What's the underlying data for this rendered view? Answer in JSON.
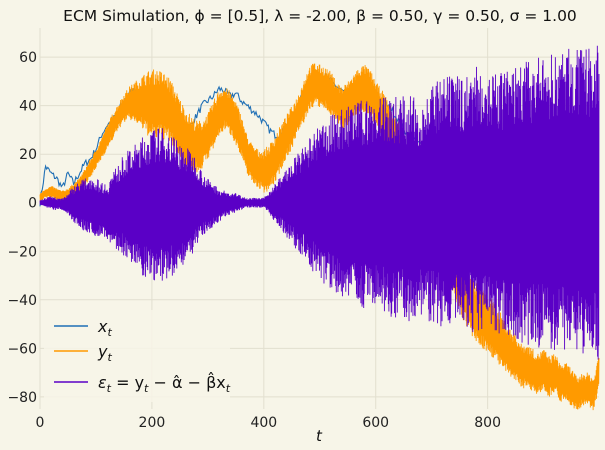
{
  "chart_data": {
    "type": "line",
    "title": "ECM Simulation, ϕ = [0.5], λ = -2.00, β = 0.50, γ = 0.50, σ = 1.00",
    "xlabel": "t",
    "ylabel": "",
    "xlim": [
      0,
      999
    ],
    "ylim": [
      -85,
      72
    ],
    "xticks": [
      0,
      200,
      400,
      600,
      800
    ],
    "xtick_labels": [
      "0",
      "200",
      "400",
      "600",
      "800"
    ],
    "yticks": [
      -80,
      -60,
      -40,
      -20,
      0,
      20,
      40,
      60
    ],
    "ytick_labels": [
      "−80",
      "−60",
      "−40",
      "−20",
      "0",
      "20",
      "40",
      "60"
    ],
    "grid": true,
    "legend_position": "bottom-left",
    "series": [
      {
        "name": "x_t",
        "label": "x",
        "label_sub": "t",
        "color": "#1f6fb5",
        "style": "trend",
        "x": [
          0,
          10,
          20,
          30,
          40,
          50,
          60,
          70,
          80,
          90,
          100,
          110,
          120,
          130,
          140,
          150,
          160,
          170,
          180,
          190,
          200,
          210,
          220,
          230,
          240,
          250,
          260,
          270,
          280,
          290,
          300,
          310,
          320,
          330,
          340,
          350,
          360,
          370,
          380,
          390,
          400,
          410,
          420,
          430,
          440,
          450,
          460,
          470,
          480,
          490,
          500,
          510,
          520,
          530,
          540,
          550,
          560,
          570,
          580,
          590,
          600,
          610,
          620,
          630,
          640,
          650,
          660,
          670,
          680,
          690,
          700,
          710,
          720,
          730,
          740,
          750,
          760,
          770,
          780,
          790,
          800,
          810,
          820,
          830,
          840,
          850,
          860,
          870,
          880,
          890,
          900,
          910,
          920,
          930,
          940,
          950,
          960,
          970,
          980,
          990,
          999
        ],
        "values": [
          0,
          15,
          12,
          10,
          6,
          12,
          8,
          12,
          16,
          18,
          22,
          28,
          32,
          34,
          38,
          42,
          45,
          47,
          44,
          42,
          40,
          42,
          38,
          36,
          33,
          30,
          30,
          32,
          36,
          40,
          42,
          44,
          47,
          46,
          44,
          45,
          42,
          40,
          38,
          36,
          33,
          30,
          28,
          28,
          30,
          34,
          40,
          44,
          48,
          50,
          52,
          52,
          50,
          48,
          46,
          45,
          44,
          45,
          46,
          45,
          44,
          43,
          40,
          38,
          34,
          30,
          28,
          26,
          24,
          22,
          20,
          18,
          16,
          14,
          13,
          12,
          11,
          10,
          9,
          8,
          7,
          6,
          5,
          5,
          4,
          4,
          4,
          4,
          4,
          4,
          5,
          5,
          5,
          6,
          6,
          6,
          6,
          6,
          6,
          6,
          6
        ]
      },
      {
        "name": "y_t",
        "label": "y",
        "label_sub": "t",
        "color": "#ff9a00",
        "style": "band",
        "x": [
          0,
          10,
          20,
          30,
          40,
          50,
          60,
          70,
          80,
          90,
          100,
          110,
          120,
          130,
          140,
          150,
          160,
          170,
          180,
          190,
          200,
          210,
          220,
          230,
          240,
          250,
          260,
          270,
          280,
          290,
          300,
          310,
          320,
          330,
          340,
          350,
          360,
          370,
          380,
          390,
          400,
          410,
          420,
          430,
          440,
          450,
          460,
          470,
          480,
          490,
          500,
          510,
          520,
          530,
          540,
          550,
          560,
          570,
          580,
          590,
          600,
          610,
          620,
          630,
          640,
          650,
          660,
          670,
          680,
          690,
          700,
          710,
          720,
          730,
          740,
          750,
          760,
          770,
          780,
          790,
          800,
          810,
          820,
          830,
          840,
          850,
          860,
          870,
          880,
          890,
          900,
          910,
          920,
          930,
          940,
          950,
          960,
          970,
          980,
          990,
          999
        ],
        "upper": [
          4,
          6,
          7,
          6,
          5,
          6,
          8,
          10,
          14,
          18,
          22,
          27,
          32,
          37,
          41,
          45,
          48,
          50,
          52,
          54,
          55,
          55,
          54,
          52,
          48,
          43,
          39,
          36,
          34,
          34,
          37,
          42,
          47,
          48,
          46,
          42,
          36,
          28,
          24,
          22,
          22,
          24,
          28,
          32,
          36,
          40,
          44,
          50,
          56,
          58,
          57,
          56,
          54,
          50,
          48,
          50,
          53,
          56,
          57,
          55,
          50,
          47,
          43,
          38,
          34,
          27,
          20,
          12,
          8,
          4,
          0,
          -4,
          -8,
          -12,
          -16,
          -20,
          -26,
          -30,
          -33,
          -34,
          -38,
          -40,
          -44,
          -48,
          -52,
          -54,
          -58,
          -58,
          -60,
          -62,
          -60,
          -63,
          -62,
          -66,
          -66,
          -68,
          -72,
          -70,
          -70,
          -72,
          -62
        ],
        "lower": [
          0,
          2,
          2,
          1,
          0,
          1,
          3,
          4,
          7,
          10,
          14,
          18,
          22,
          26,
          30,
          33,
          34,
          33,
          31,
          28,
          26,
          26,
          26,
          25,
          22,
          18,
          14,
          12,
          12,
          14,
          18,
          22,
          27,
          30,
          28,
          24,
          18,
          12,
          8,
          6,
          4,
          5,
          8,
          13,
          18,
          22,
          28,
          32,
          37,
          40,
          39,
          38,
          36,
          33,
          30,
          32,
          35,
          37,
          37,
          34,
          32,
          28,
          22,
          16,
          10,
          2,
          -5,
          -12,
          -16,
          -20,
          -25,
          -28,
          -32,
          -36,
          -40,
          -46,
          -50,
          -55,
          -58,
          -60,
          -62,
          -64,
          -67,
          -70,
          -72,
          -74,
          -76,
          -77,
          -78,
          -79,
          -78,
          -80,
          -78,
          -82,
          -82,
          -84,
          -86,
          -84,
          -84,
          -86,
          -76
        ]
      },
      {
        "name": "epsilon_t",
        "label": "ε",
        "label_sub": "t",
        "label_rest": " = y",
        "label_sub2": "t",
        "label_rest2": " − α̂ − β̂x",
        "label_sub3": "t",
        "color": "#5a00c6",
        "style": "band",
        "x": [
          0,
          10,
          20,
          30,
          40,
          50,
          60,
          70,
          80,
          90,
          100,
          110,
          120,
          130,
          140,
          150,
          160,
          170,
          180,
          190,
          200,
          210,
          220,
          230,
          240,
          250,
          260,
          270,
          280,
          290,
          300,
          310,
          320,
          330,
          340,
          350,
          360,
          370,
          380,
          390,
          400,
          410,
          420,
          430,
          440,
          450,
          460,
          470,
          480,
          490,
          500,
          510,
          520,
          530,
          540,
          550,
          560,
          570,
          580,
          590,
          600,
          610,
          620,
          630,
          640,
          650,
          660,
          670,
          680,
          690,
          700,
          710,
          720,
          730,
          740,
          750,
          760,
          770,
          780,
          790,
          800,
          810,
          820,
          830,
          840,
          850,
          860,
          870,
          880,
          890,
          900,
          910,
          920,
          930,
          940,
          950,
          960,
          970,
          980,
          990,
          999
        ],
        "upper": [
          1,
          2,
          3,
          2,
          2,
          4,
          7,
          9,
          10,
          11,
          10,
          9,
          8,
          13,
          16,
          20,
          22,
          24,
          27,
          28,
          30,
          31,
          31,
          30,
          28,
          25,
          23,
          22,
          18,
          13,
          10,
          8,
          6,
          5,
          4,
          4,
          3,
          2,
          2,
          2,
          2,
          5,
          8,
          11,
          14,
          17,
          20,
          23,
          26,
          29,
          32,
          34,
          36,
          38,
          39,
          40,
          41,
          42,
          43,
          43,
          44,
          44,
          44,
          45,
          45,
          45,
          45,
          43,
          44,
          45,
          48,
          50,
          51,
          52,
          52,
          53,
          53,
          55,
          56,
          57,
          55,
          53,
          54,
          55,
          56,
          57,
          58,
          59,
          58,
          60,
          60,
          61,
          62,
          63,
          64,
          64,
          63,
          63,
          64,
          64,
          65
        ],
        "lower": [
          -1,
          -2,
          -3,
          -3,
          -3,
          -5,
          -8,
          -10,
          -12,
          -13,
          -14,
          -14,
          -15,
          -18,
          -20,
          -22,
          -26,
          -28,
          -30,
          -31,
          -32,
          -33,
          -33,
          -32,
          -30,
          -28,
          -25,
          -22,
          -18,
          -14,
          -12,
          -10,
          -8,
          -6,
          -5,
          -4,
          -3,
          -2,
          -2,
          -2,
          -2,
          -5,
          -8,
          -11,
          -14,
          -17,
          -20,
          -23,
          -26,
          -29,
          -32,
          -34,
          -36,
          -38,
          -40,
          -41,
          -42,
          -43,
          -44,
          -45,
          -46,
          -46,
          -47,
          -47,
          -48,
          -48,
          -49,
          -49,
          -48,
          -49,
          -50,
          -51,
          -51,
          -52,
          -52,
          -53,
          -53,
          -53,
          -54,
          -54,
          -55,
          -56,
          -56,
          -57,
          -57,
          -58,
          -58,
          -59,
          -60,
          -60,
          -60,
          -61,
          -61,
          -62,
          -62,
          -62,
          -63,
          -64,
          -64,
          -64,
          -65
        ]
      }
    ]
  }
}
